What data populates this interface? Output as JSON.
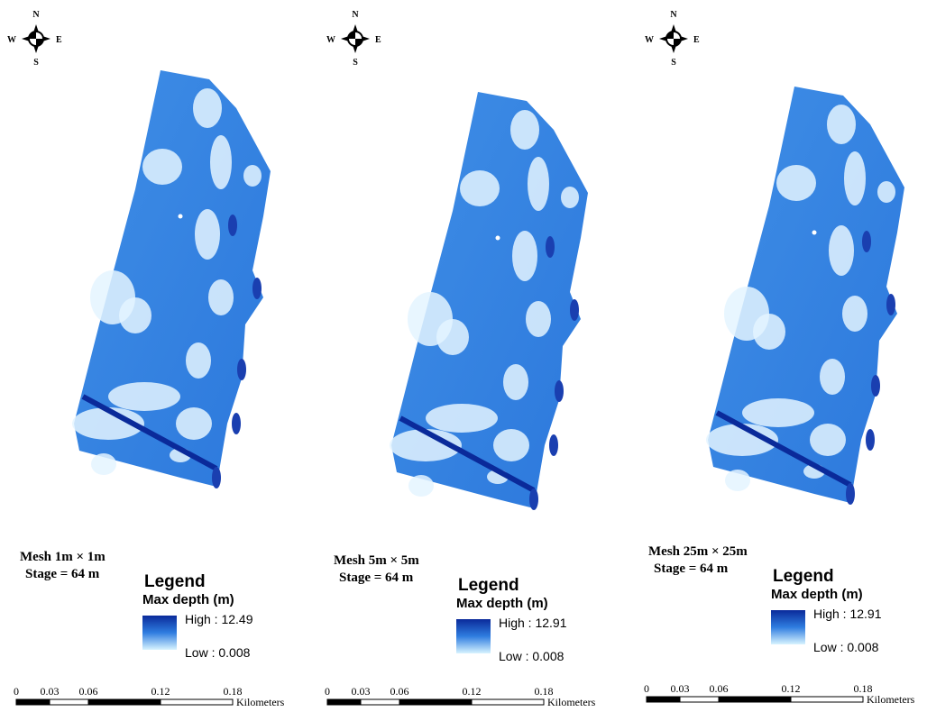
{
  "panels": [
    {
      "compass": {
        "n": "N",
        "s": "S",
        "w": "W",
        "e": "E"
      },
      "mesh_label": "Mesh 1m × 1m",
      "stage_label": "Stage = 64 m",
      "legend": {
        "title": "Legend",
        "subtitle": "Max depth (m)",
        "high": "High : 12.49",
        "low": "Low : 0.008"
      },
      "scale": {
        "ticks": [
          "0",
          "0.03",
          "0.06",
          "0.12",
          "0.18"
        ],
        "unit": "Kilometers"
      }
    },
    {
      "compass": {
        "n": "N",
        "s": "S",
        "w": "W",
        "e": "E"
      },
      "mesh_label": "Mesh 5m × 5m",
      "stage_label": "Stage = 64 m",
      "legend": {
        "title": "Legend",
        "subtitle": "Max depth (m)",
        "high": "High : 12.91",
        "low": "Low : 0.008"
      },
      "scale": {
        "ticks": [
          "0",
          "0.03",
          "0.06",
          "0.12",
          "0.18"
        ],
        "unit": "Kilometers"
      }
    },
    {
      "compass": {
        "n": "N",
        "s": "S",
        "w": "W",
        "e": "E"
      },
      "mesh_label": "Mesh 25m × 25m",
      "stage_label": "Stage = 64 m",
      "legend": {
        "title": "Legend",
        "subtitle": "Max depth (m)",
        "high": "High : 12.91",
        "low": "Low : 0.008"
      },
      "scale": {
        "ticks": [
          "0",
          "0.03",
          "0.06",
          "0.12",
          "0.18"
        ],
        "unit": "Kilometers"
      }
    }
  ]
}
